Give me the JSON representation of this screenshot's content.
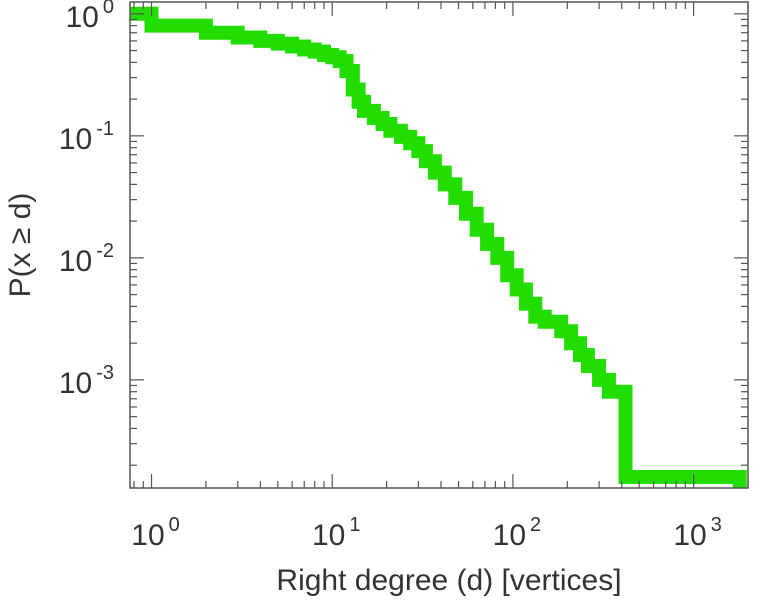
{
  "chart_data": {
    "type": "line",
    "step": true,
    "xlabel": "Right degree (d) [vertices]",
    "ylabel": "P(x ≥ d)",
    "xscale": "log",
    "yscale": "log",
    "xlim": [
      0.76,
      2000
    ],
    "ylim": [
      0.00013,
      1.25
    ],
    "grid": false,
    "legend": "none",
    "x_ticks": [
      {
        "base": "10",
        "exp": "0",
        "value": 1
      },
      {
        "base": "10",
        "exp": "1",
        "value": 10
      },
      {
        "base": "10",
        "exp": "2",
        "value": 100
      },
      {
        "base": "10",
        "exp": "3",
        "value": 1000
      }
    ],
    "y_ticks": [
      {
        "base": "10",
        "exp": "0",
        "value": 1
      },
      {
        "base": "10",
        "exp": "-1",
        "value": 0.1
      },
      {
        "base": "10",
        "exp": "-2",
        "value": 0.01
      },
      {
        "base": "10",
        "exp": "-3",
        "value": 0.001
      }
    ],
    "series": [
      {
        "color": "#22dd00",
        "points": [
          [
            0.76,
            1.0
          ],
          [
            1,
            1.0
          ],
          [
            1,
            0.8
          ],
          [
            2,
            0.8
          ],
          [
            2,
            0.7
          ],
          [
            3,
            0.7
          ],
          [
            3,
            0.64
          ],
          [
            4,
            0.64
          ],
          [
            4,
            0.6
          ],
          [
            5,
            0.6
          ],
          [
            5,
            0.57
          ],
          [
            6,
            0.57
          ],
          [
            6,
            0.54
          ],
          [
            7,
            0.54
          ],
          [
            7,
            0.51
          ],
          [
            8,
            0.51
          ],
          [
            8,
            0.49
          ],
          [
            9,
            0.49
          ],
          [
            9,
            0.46
          ],
          [
            10,
            0.46
          ],
          [
            10,
            0.44
          ],
          [
            11,
            0.44
          ],
          [
            11,
            0.41
          ],
          [
            12,
            0.41
          ],
          [
            12,
            0.34
          ],
          [
            13,
            0.34
          ],
          [
            13,
            0.24
          ],
          [
            14,
            0.24
          ],
          [
            14,
            0.19
          ],
          [
            15,
            0.19
          ],
          [
            15,
            0.16
          ],
          [
            17,
            0.16
          ],
          [
            17,
            0.14
          ],
          [
            19,
            0.14
          ],
          [
            19,
            0.125
          ],
          [
            21,
            0.125
          ],
          [
            21,
            0.11
          ],
          [
            24,
            0.11
          ],
          [
            24,
            0.098
          ],
          [
            27,
            0.098
          ],
          [
            27,
            0.087
          ],
          [
            30,
            0.087
          ],
          [
            30,
            0.075
          ],
          [
            33,
            0.075
          ],
          [
            33,
            0.062
          ],
          [
            37,
            0.062
          ],
          [
            37,
            0.05
          ],
          [
            42,
            0.05
          ],
          [
            42,
            0.04
          ],
          [
            48,
            0.04
          ],
          [
            48,
            0.031
          ],
          [
            55,
            0.031
          ],
          [
            55,
            0.023
          ],
          [
            63,
            0.023
          ],
          [
            63,
            0.017
          ],
          [
            72,
            0.017
          ],
          [
            72,
            0.013
          ],
          [
            82,
            0.013
          ],
          [
            82,
            0.01
          ],
          [
            93,
            0.01
          ],
          [
            93,
            0.0072
          ],
          [
            105,
            0.0072
          ],
          [
            105,
            0.0055
          ],
          [
            118,
            0.0055
          ],
          [
            118,
            0.0042
          ],
          [
            133,
            0.0042
          ],
          [
            133,
            0.0033
          ],
          [
            150,
            0.0033
          ],
          [
            150,
            0.003
          ],
          [
            185,
            0.003
          ],
          [
            185,
            0.0025
          ],
          [
            210,
            0.0025
          ],
          [
            210,
            0.002
          ],
          [
            235,
            0.002
          ],
          [
            235,
            0.0016
          ],
          [
            260,
            0.0016
          ],
          [
            260,
            0.0013
          ],
          [
            300,
            0.0013
          ],
          [
            300,
            0.001
          ],
          [
            340,
            0.001
          ],
          [
            340,
            0.0008
          ],
          [
            420,
            0.0008
          ],
          [
            420,
            0.00016
          ],
          [
            1800,
            0.00016
          ],
          [
            1800,
            0.00013
          ]
        ]
      }
    ]
  }
}
